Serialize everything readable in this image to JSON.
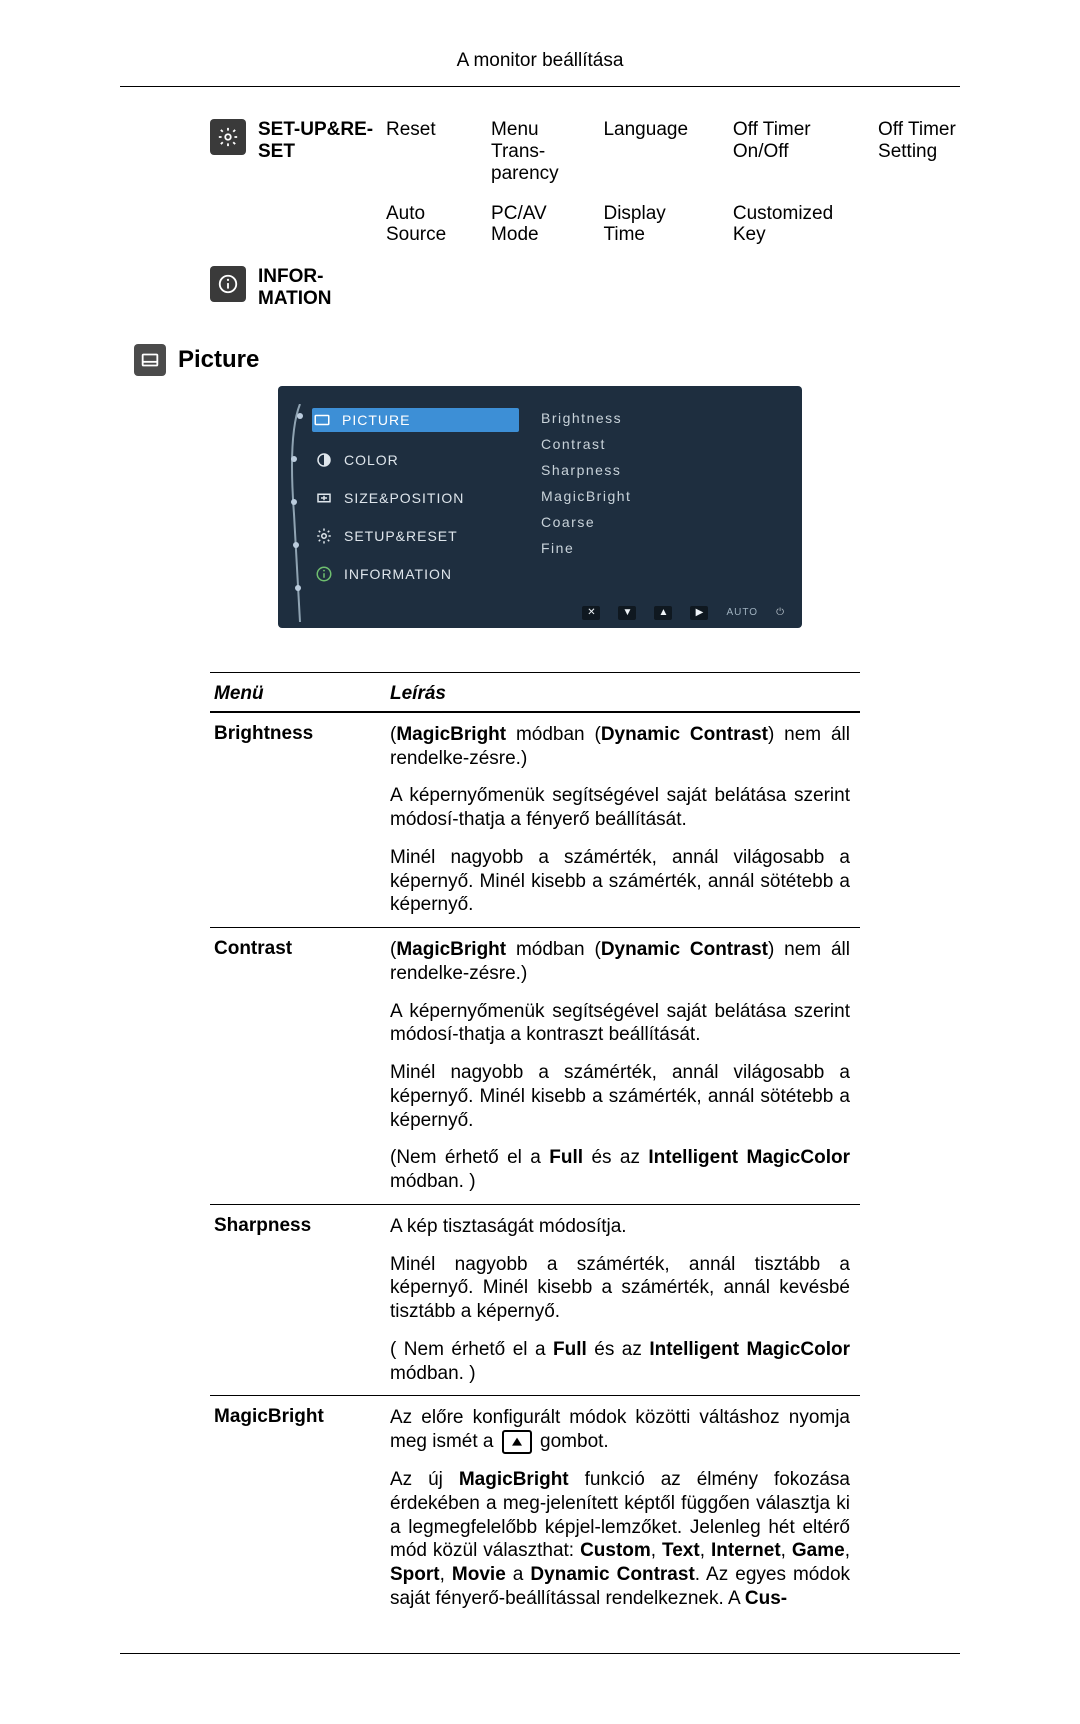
{
  "page_title": "A monitor beállítása",
  "setup_reset": {
    "label": "SET-UP&RE-SET",
    "row1": [
      "Reset",
      "Menu Trans-parency",
      "Language",
      "Off Timer On/Off",
      "Off Timer Setting"
    ],
    "row2": [
      "Auto Source",
      "PC/AV Mode",
      "Display Time",
      "Customized Key",
      ""
    ]
  },
  "information": {
    "label": "INFOR-MATION"
  },
  "picture_heading": "Picture",
  "osd": {
    "bg": "#1e2e3f",
    "accent": "#3d8fd6",
    "text_color": "#d0d7dc",
    "left_items": [
      {
        "label": "PICTURE",
        "active": true,
        "icon": "picture"
      },
      {
        "label": "COLOR",
        "icon": "color"
      },
      {
        "label": "SIZE&POSITION",
        "icon": "size"
      },
      {
        "label": "SETUP&RESET",
        "icon": "gear"
      },
      {
        "label": "INFORMATION",
        "icon": "info"
      }
    ],
    "right_items": [
      "Brightness",
      "Contrast",
      "Sharpness",
      "MagicBright",
      "Coarse",
      "Fine"
    ],
    "foot": {
      "buttons": [
        "✕",
        "▼",
        "▲",
        "▶"
      ],
      "auto_label": "AUTO",
      "power": "⏻"
    }
  },
  "table": {
    "headers": {
      "menu": "Menü",
      "desc": "Leírás"
    },
    "rows": [
      {
        "menu": "Brightness",
        "paras": [
          "(<b>MagicBright</b> módban (<b>Dynamic Contrast</b>) nem áll rendelke-zésre.)",
          "A képernyőmenük segítségével saját belátása szerint módosí-thatja a fényerő beállítását.",
          "Minél nagyobb a számérték, annál világosabb a képernyő. Minél kisebb a számérték, annál sötétebb a képernyő."
        ]
      },
      {
        "menu": "Contrast",
        "paras": [
          "(<b>MagicBright</b> módban (<b>Dynamic Contrast</b>) nem áll rendelke-zésre.)",
          "A képernyőmenük segítségével saját belátása szerint módosí-thatja a kontraszt beállítását.",
          "Minél nagyobb a számérték, annál világosabb a képernyő. Minél kisebb a számérték, annál sötétebb a képernyő.",
          "(Nem érhető el a <b>Full</b> és az <b>Intelligent MagicColor</b> módban. )"
        ]
      },
      {
        "menu": "Sharpness",
        "paras": [
          "A kép tisztaságát módosítja.",
          "Minél nagyobb a számérték, annál tisztább a képernyő. Minél kisebb a számérték, annál kevésbé tisztább a képernyő.",
          "( Nem érhető el a <b>Full</b> és az <b>Intelligent MagicColor</b> módban. )"
        ]
      },
      {
        "menu": "MagicBright",
        "paras": [
          "Az előre konfigurált módok közötti váltáshoz nyomja meg ismét a {{BTN}} gombot.",
          "Az új <b>MagicBright</b> funkció az élmény fokozása érdekében a meg-jelenített képtől függően választja ki a legmegfelelőbb képjel-lemzőket. Jelenleg hét eltérő mód közül választhat: <b>Custom</b>, <b>Text</b>, <b>Internet</b>, <b>Game</b>, <b>Sport</b>, <b>Movie</b> a <b>Dynamic Contrast</b>. Az egyes módok saját fényerő-beállítással rendelkeznek. A <b>Cus-</b>"
        ]
      }
    ]
  }
}
